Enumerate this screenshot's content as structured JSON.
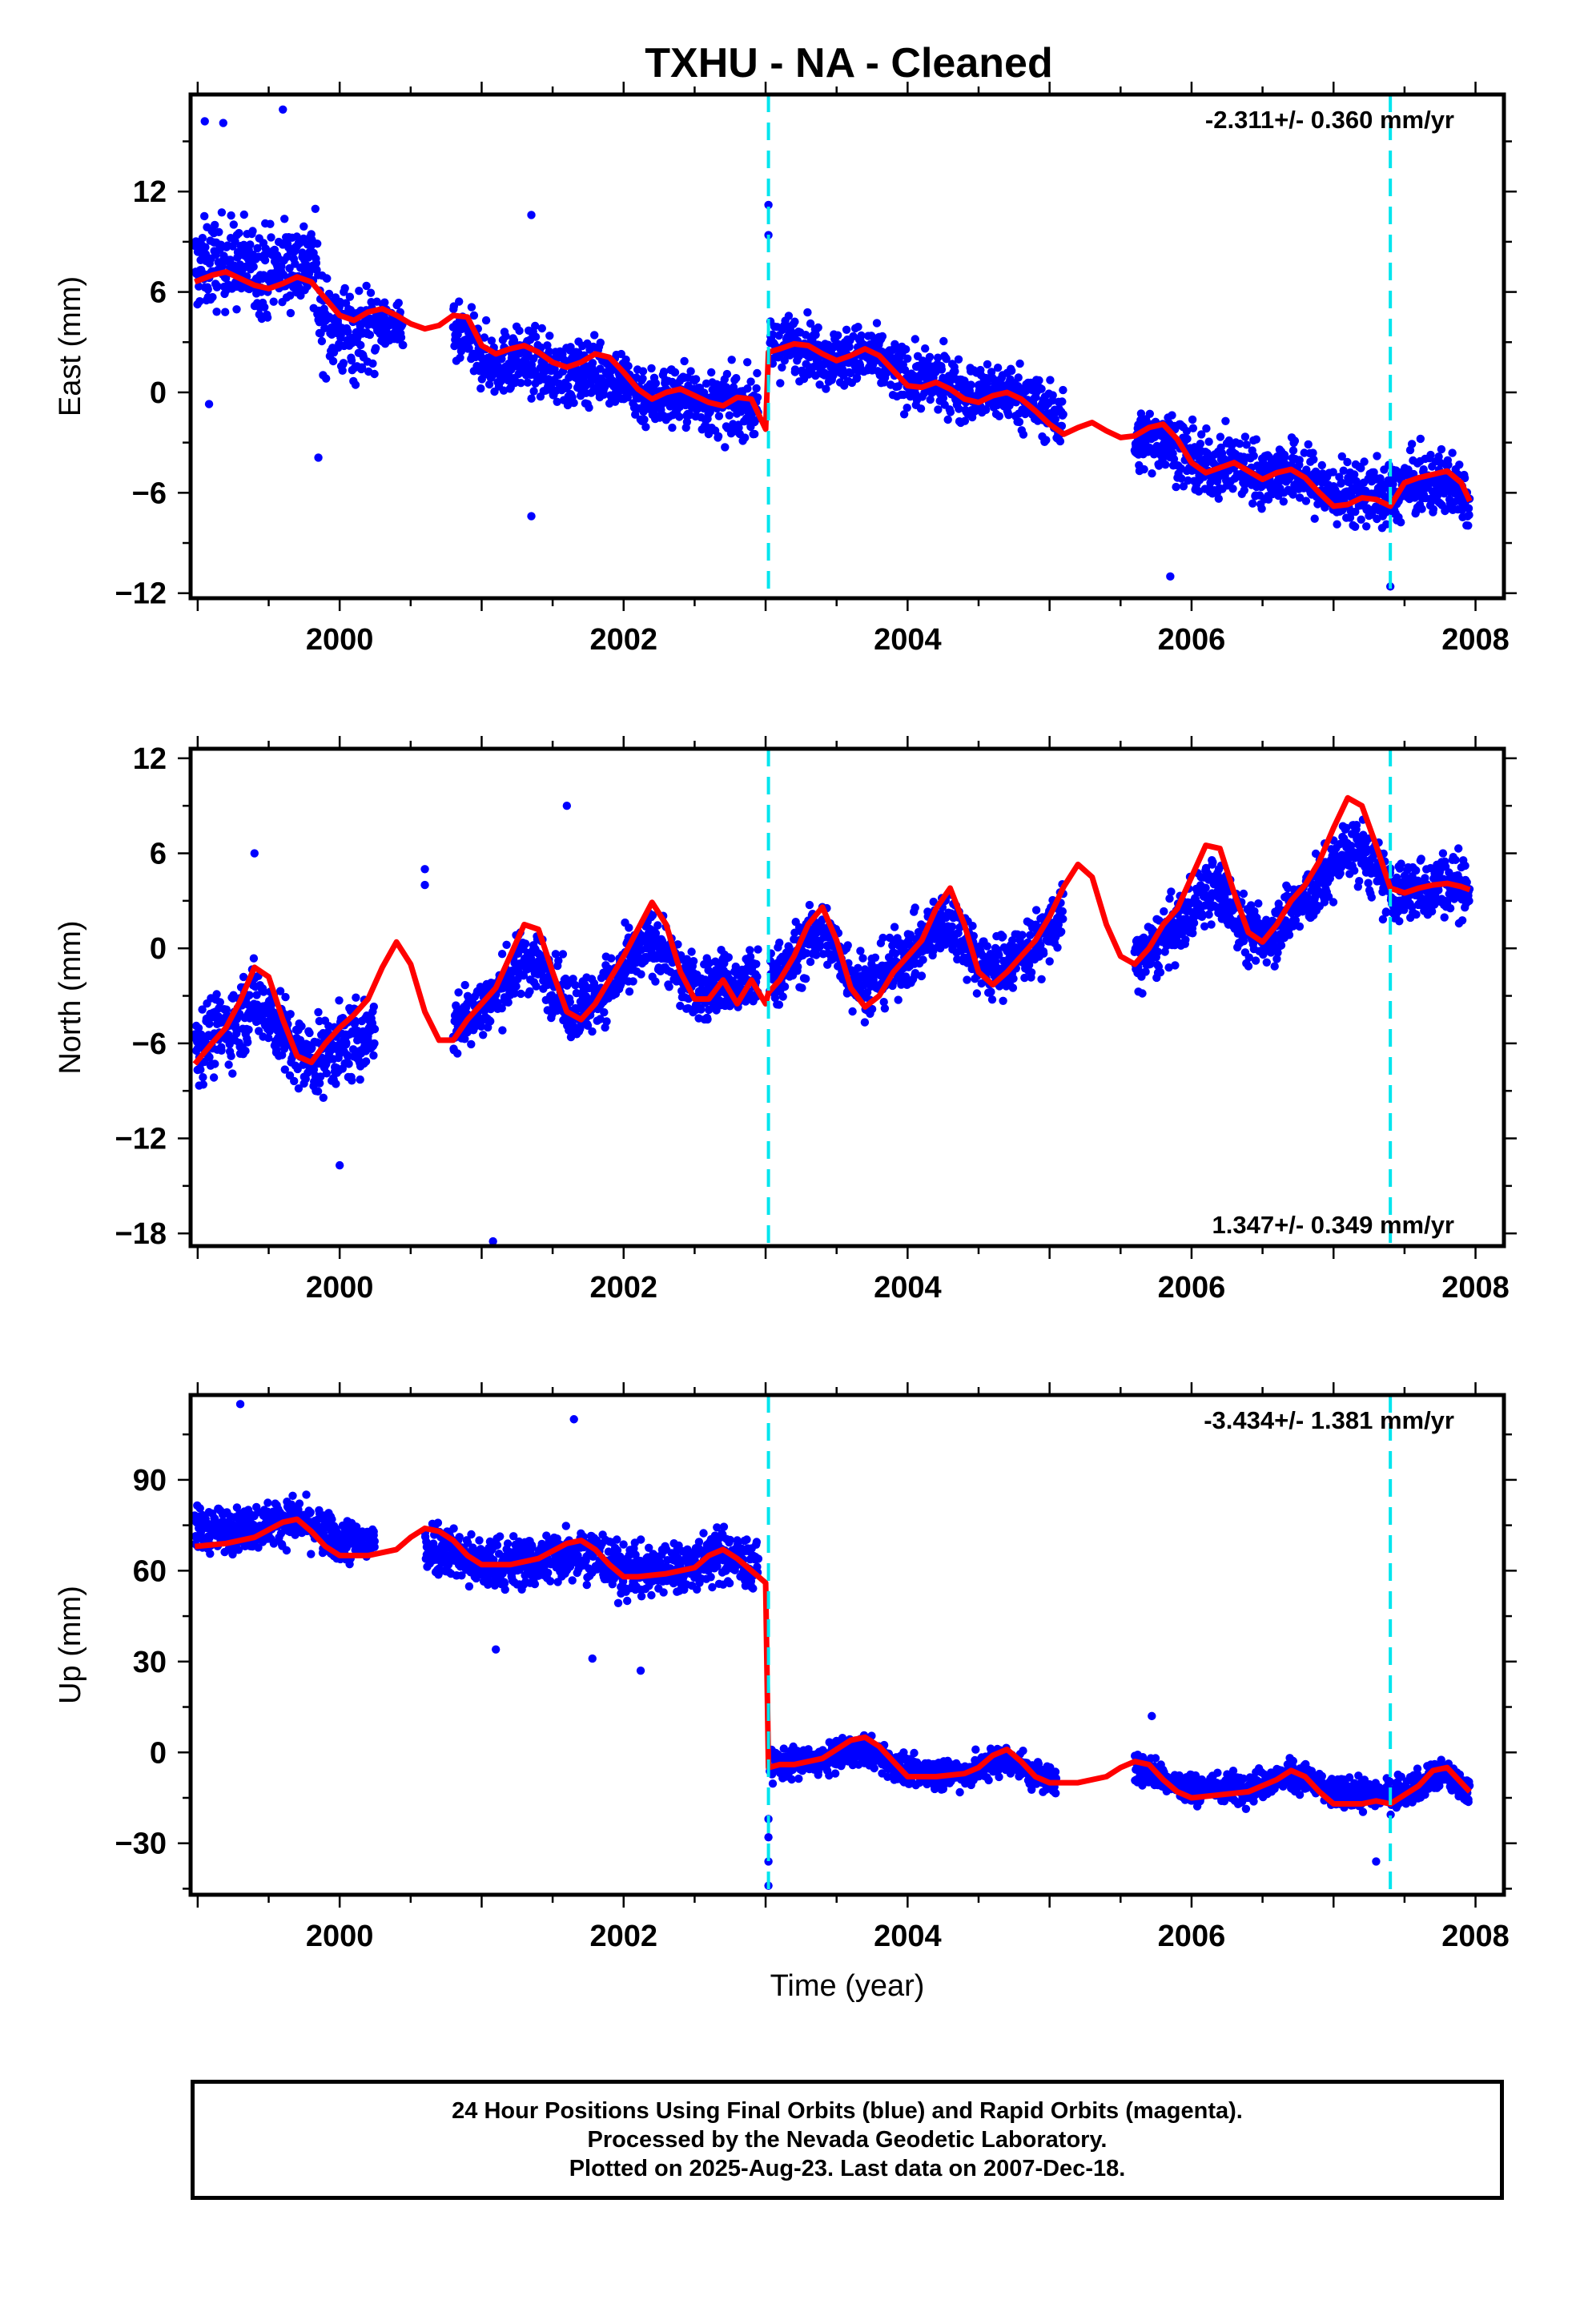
{
  "title": "TXHU  - NA - Cleaned",
  "caption": [
    "24 Hour Positions Using Final Orbits (blue) and Rapid Orbits (magenta).",
    "Processed by the Nevada Geodetic Laboratory.",
    "Plotted on 2025-Aug-23. Last data on 2007-Dec-18."
  ],
  "colors": {
    "data_points": "#0000ff",
    "model_fit": "#ff0000",
    "offset_lines": "#00e5ee",
    "frame": "#000000"
  },
  "chart_data": [
    {
      "type": "scatter",
      "ylabel": "East (mm)",
      "xlabel": "",
      "xlim": [
        1998.95,
        2008.2
      ],
      "ylim": [
        -12.3,
        17.8
      ],
      "yticks": [
        12,
        6,
        0,
        -6,
        -12
      ],
      "ytick_labels": [
        "12",
        "6",
        "0",
        "-6",
        "-12"
      ],
      "xticks": [
        2000,
        2002,
        2004,
        2006,
        2008
      ],
      "xtick_labels": [
        "2000",
        "2002",
        "2004",
        "2006",
        "2008"
      ],
      "rate_label": "-2.311+/- 0.360 mm/yr",
      "rate_position": "top-right",
      "offset_epochs": [
        2003.02,
        2007.4
      ],
      "series": [
        {
          "role": "model",
          "x": [
            1998.98,
            1999.1,
            1999.2,
            1999.3,
            1999.4,
            1999.5,
            1999.6,
            1999.7,
            1999.8,
            1999.9,
            2000.0,
            2000.1,
            2000.2,
            2000.3,
            2000.4,
            2000.5,
            2000.6,
            2000.7,
            2000.8,
            2000.9,
            2001.0,
            2001.1,
            2001.2,
            2001.3,
            2001.4,
            2001.5,
            2001.6,
            2001.7,
            2001.8,
            2001.9,
            2002.0,
            2002.1,
            2002.2,
            2002.3,
            2002.4,
            2002.5,
            2002.6,
            2002.7,
            2002.8,
            2002.9,
            2003.0,
            2003.02,
            2003.1,
            2003.2,
            2003.3,
            2003.4,
            2003.5,
            2003.6,
            2003.7,
            2003.8,
            2003.9,
            2004.0,
            2004.1,
            2004.2,
            2004.3,
            2004.4,
            2004.5,
            2004.6,
            2004.7,
            2004.8,
            2004.9,
            2005.0,
            2005.1,
            2005.2,
            2005.3,
            2005.4,
            2005.5,
            2005.6,
            2005.7,
            2005.8,
            2005.9,
            2006.0,
            2006.1,
            2006.2,
            2006.3,
            2006.4,
            2006.5,
            2006.6,
            2006.7,
            2006.8,
            2006.9,
            2007.0,
            2007.1,
            2007.2,
            2007.3,
            2007.4,
            2007.5,
            2007.6,
            2007.7,
            2007.8,
            2007.9,
            2007.96
          ],
          "y": [
            6.6,
            7.0,
            7.2,
            6.8,
            6.4,
            6.2,
            6.5,
            6.9,
            6.6,
            5.6,
            4.6,
            4.3,
            4.8,
            5.0,
            4.6,
            4.1,
            3.8,
            4.0,
            4.6,
            4.5,
            2.8,
            2.3,
            2.6,
            2.8,
            2.4,
            1.8,
            1.5,
            1.8,
            2.3,
            2.1,
            1.2,
            0.2,
            -0.4,
            0.0,
            0.2,
            -0.2,
            -0.6,
            -0.8,
            -0.3,
            -0.4,
            -2.2,
            2.4,
            2.6,
            2.9,
            2.8,
            2.3,
            1.9,
            2.2,
            2.6,
            2.2,
            1.3,
            0.4,
            0.3,
            0.6,
            0.2,
            -0.4,
            -0.6,
            -0.2,
            0.0,
            -0.4,
            -1.1,
            -1.9,
            -2.5,
            -2.1,
            -1.8,
            -2.3,
            -2.7,
            -2.6,
            -2.1,
            -1.9,
            -2.8,
            -4.2,
            -4.8,
            -4.5,
            -4.2,
            -4.7,
            -5.2,
            -4.8,
            -4.6,
            -5.1,
            -6.0,
            -6.8,
            -6.7,
            -6.3,
            -6.4,
            -6.8,
            -5.4,
            -5.1,
            -4.9,
            -4.7,
            -5.4,
            -6.5
          ]
        },
        {
          "role": "observations",
          "clusters": [
            {
              "t0": 1998.98,
              "t1": 1999.85,
              "base": [
                8.4,
                9.0
              ],
              "noise": 2.4
            },
            {
              "t0": 1999.85,
              "t1": 2000.25,
              "base": [
                3.2,
                2.0
              ],
              "noise": 2.6
            },
            {
              "t0": 2000.25,
              "t1": 2000.45,
              "base": [
                2.8,
                3.0
              ],
              "noise": 1.2
            },
            {
              "t0": 2000.8,
              "t1": 2002.95,
              "base": [
                1.5,
                -1.3
              ],
              "noise": 1.7
            },
            {
              "t0": 2003.03,
              "t1": 2005.1,
              "base": [
                3.0,
                -0.6
              ],
              "noise": 1.6
            },
            {
              "t0": 2005.6,
              "t1": 2007.96,
              "base": [
                -3.5,
                -6.5
              ],
              "noise": 1.7
            }
          ],
          "outliers": [
            {
              "x": 2001.35,
              "y": -7.4
            },
            {
              "x": 2003.02,
              "y": 11.2
            },
            {
              "x": 2003.02,
              "y": 9.4
            },
            {
              "x": 1999.05,
              "y": 16.2
            },
            {
              "x": 1999.18,
              "y": 16.1
            },
            {
              "x": 1999.6,
              "y": 16.9
            },
            {
              "x": 2007.4,
              "y": -11.6
            },
            {
              "x": 2005.85,
              "y": -11.0
            },
            {
              "x": 1999.08,
              "y": -0.7
            },
            {
              "x": 1999.85,
              "y": -3.9
            },
            {
              "x": 2001.35,
              "y": 10.6
            }
          ]
        }
      ]
    },
    {
      "type": "scatter",
      "ylabel": "North (mm)",
      "xlabel": "",
      "xlim": [
        1998.95,
        2008.2
      ],
      "ylim": [
        -18.8,
        12.6
      ],
      "yticks": [
        12,
        6,
        0,
        -6,
        -12,
        -18
      ],
      "ytick_labels": [
        "12",
        "6",
        "0",
        "-6",
        "-12",
        "-18"
      ],
      "xticks": [
        2000,
        2002,
        2004,
        2006,
        2008
      ],
      "xtick_labels": [
        "2000",
        "2002",
        "2004",
        "2006",
        "2008"
      ],
      "rate_label": "1.347+/- 0.349 mm/yr",
      "rate_position": "bottom-right",
      "offset_epochs": [
        2003.02,
        2007.4
      ],
      "series": [
        {
          "role": "model",
          "x": [
            1998.98,
            1999.1,
            1999.2,
            1999.3,
            1999.4,
            1999.5,
            1999.6,
            1999.7,
            1999.8,
            1999.9,
            2000.0,
            2000.1,
            2000.2,
            2000.3,
            2000.4,
            2000.5,
            2000.6,
            2000.7,
            2000.8,
            2000.9,
            2001.0,
            2001.1,
            2001.2,
            2001.3,
            2001.4,
            2001.5,
            2001.6,
            2001.7,
            2001.8,
            2001.9,
            2002.0,
            2002.1,
            2002.2,
            2002.3,
            2002.4,
            2002.5,
            2002.6,
            2002.7,
            2002.8,
            2002.9,
            2003.0,
            2003.02,
            2003.1,
            2003.2,
            2003.3,
            2003.4,
            2003.5,
            2003.6,
            2003.7,
            2003.8,
            2003.9,
            2004.0,
            2004.1,
            2004.2,
            2004.3,
            2004.4,
            2004.5,
            2004.6,
            2004.7,
            2004.8,
            2004.9,
            2005.0,
            2005.1,
            2005.2,
            2005.3,
            2005.4,
            2005.5,
            2005.6,
            2005.7,
            2005.8,
            2005.9,
            2006.0,
            2006.1,
            2006.2,
            2006.3,
            2006.4,
            2006.5,
            2006.6,
            2006.7,
            2006.8,
            2006.9,
            2007.0,
            2007.1,
            2007.2,
            2007.3,
            2007.4,
            2007.5,
            2007.6,
            2007.7,
            2007.8,
            2007.9,
            2007.96
          ],
          "y": [
            -7.3,
            -6.0,
            -5.0,
            -3.3,
            -1.2,
            -1.8,
            -4.5,
            -6.8,
            -7.2,
            -6.0,
            -5.0,
            -4.2,
            -3.2,
            -1.2,
            0.4,
            -1.0,
            -4.0,
            -5.8,
            -5.8,
            -4.5,
            -3.5,
            -2.5,
            -0.5,
            1.5,
            1.2,
            -1.5,
            -4.0,
            -4.5,
            -3.5,
            -2.0,
            -0.5,
            1.2,
            2.9,
            1.5,
            -1.5,
            -3.2,
            -3.2,
            -2.0,
            -3.5,
            -2.0,
            -3.5,
            -2.8,
            -2.0,
            -0.5,
            1.5,
            2.6,
            0.5,
            -2.5,
            -3.7,
            -3.0,
            -1.5,
            -0.5,
            0.5,
            2.5,
            3.8,
            1.5,
            -1.5,
            -2.3,
            -1.5,
            -0.5,
            0.5,
            2.0,
            3.9,
            5.3,
            4.5,
            1.5,
            -0.5,
            -1.0,
            0.0,
            1.5,
            2.5,
            4.5,
            6.5,
            6.3,
            3.5,
            1.0,
            0.4,
            1.5,
            3.0,
            4.0,
            5.5,
            7.6,
            9.5,
            9.0,
            6.5,
            3.8,
            3.5,
            3.8,
            4.0,
            4.1,
            3.9,
            3.7
          ]
        },
        {
          "role": "observations",
          "clusters": [
            {
              "t0": 1998.98,
              "t1": 2000.25,
              "base": [
                -4.5,
                -8.5
              ],
              "noise": 2.2
            },
            {
              "t0": 2000.8,
              "t1": 2002.95,
              "base": [
                -4.0,
                -1.5
              ],
              "noise": 1.8
            },
            {
              "t0": 2003.03,
              "t1": 2005.1,
              "base": [
                -1.0,
                0.0
              ],
              "noise": 1.8
            },
            {
              "t0": 2005.6,
              "t1": 2007.96,
              "base": [
                -1.0,
                4.5
              ],
              "noise": 1.8
            }
          ],
          "outliers": [
            {
              "x": 2001.08,
              "y": -18.5
            },
            {
              "x": 2000.6,
              "y": 5.0
            },
            {
              "x": 2000.6,
              "y": 4.0
            },
            {
              "x": 2001.6,
              "y": 9.0
            },
            {
              "x": 2000.0,
              "y": -13.7
            },
            {
              "x": 1999.4,
              "y": 6.0
            }
          ]
        }
      ]
    },
    {
      "type": "scatter",
      "ylabel": "Up (mm)",
      "xlabel": "Time (year)",
      "xlim": [
        1998.95,
        2008.2
      ],
      "ylim": [
        -47,
        118
      ],
      "yticks": [
        90,
        60,
        30,
        0,
        -30
      ],
      "ytick_labels": [
        "90",
        "60",
        "30",
        "0",
        "-30"
      ],
      "xticks": [
        2000,
        2002,
        2004,
        2006,
        2008
      ],
      "xtick_labels": [
        "2000",
        "2002",
        "2004",
        "2006",
        "2008"
      ],
      "rate_label": "-3.434+/- 1.381 mm/yr",
      "rate_position": "top-right",
      "offset_epochs": [
        2003.02,
        2007.4
      ],
      "series": [
        {
          "role": "model",
          "x": [
            1998.98,
            1999.2,
            1999.4,
            1999.6,
            1999.7,
            1999.8,
            1999.9,
            2000.0,
            2000.2,
            2000.4,
            2000.5,
            2000.6,
            2000.7,
            2000.8,
            2000.9,
            2001.0,
            2001.2,
            2001.4,
            2001.6,
            2001.7,
            2001.8,
            2001.9,
            2002.0,
            2002.1,
            2002.3,
            2002.5,
            2002.6,
            2002.7,
            2002.8,
            2002.9,
            2003.0,
            2003.02,
            2003.1,
            2003.2,
            2003.4,
            2003.6,
            2003.7,
            2003.8,
            2003.9,
            2004.0,
            2004.2,
            2004.4,
            2004.5,
            2004.6,
            2004.7,
            2004.8,
            2004.9,
            2005.0,
            2005.2,
            2005.4,
            2005.5,
            2005.6,
            2005.7,
            2005.8,
            2005.9,
            2006.0,
            2006.2,
            2006.4,
            2006.6,
            2006.7,
            2006.8,
            2006.9,
            2007.0,
            2007.2,
            2007.3,
            2007.4,
            2007.5,
            2007.6,
            2007.7,
            2007.8,
            2007.9,
            2007.96
          ],
          "y": [
            68,
            69,
            71,
            76,
            77,
            73,
            68,
            65,
            65,
            67,
            71,
            74,
            73,
            70,
            65,
            62,
            62,
            64,
            69,
            70,
            67,
            62,
            58,
            58,
            59,
            61,
            65,
            67,
            64,
            60,
            56,
            -5,
            -4,
            -4,
            -2,
            4,
            5,
            2,
            -3,
            -8,
            -8,
            -7,
            -5,
            -1,
            1,
            -3,
            -8,
            -10,
            -10,
            -8,
            -5,
            -3,
            -4,
            -9,
            -13,
            -15,
            -14,
            -13,
            -9,
            -6,
            -8,
            -13,
            -17,
            -17,
            -16,
            -17,
            -14,
            -11,
            -6,
            -5,
            -10,
            -13
          ]
        },
        {
          "role": "observations",
          "clusters": [
            {
              "t0": 1998.98,
              "t1": 2000.25,
              "base": [
                80,
                75
              ],
              "noise": 6.5
            },
            {
              "t0": 2000.6,
              "t1": 2002.95,
              "base": [
                62,
                63
              ],
              "noise": 8
            },
            {
              "t0": 2003.03,
              "t1": 2005.05,
              "base": [
                -3,
                -7
              ],
              "noise": 4.5
            },
            {
              "t0": 2005.6,
              "t1": 2007.96,
              "base": [
                -8,
                -11
              ],
              "noise": 4.5
            }
          ],
          "outliers": [
            {
              "x": 1999.3,
              "y": 115
            },
            {
              "x": 2001.65,
              "y": 110
            },
            {
              "x": 2003.02,
              "y": -44
            },
            {
              "x": 2003.02,
              "y": -36
            },
            {
              "x": 2003.02,
              "y": -28
            },
            {
              "x": 2003.02,
              "y": -22
            },
            {
              "x": 2001.78,
              "y": 31
            },
            {
              "x": 2002.12,
              "y": 27
            },
            {
              "x": 2001.1,
              "y": 34
            },
            {
              "x": 2007.3,
              "y": -36
            },
            {
              "x": 2005.72,
              "y": 12
            }
          ]
        }
      ]
    }
  ]
}
